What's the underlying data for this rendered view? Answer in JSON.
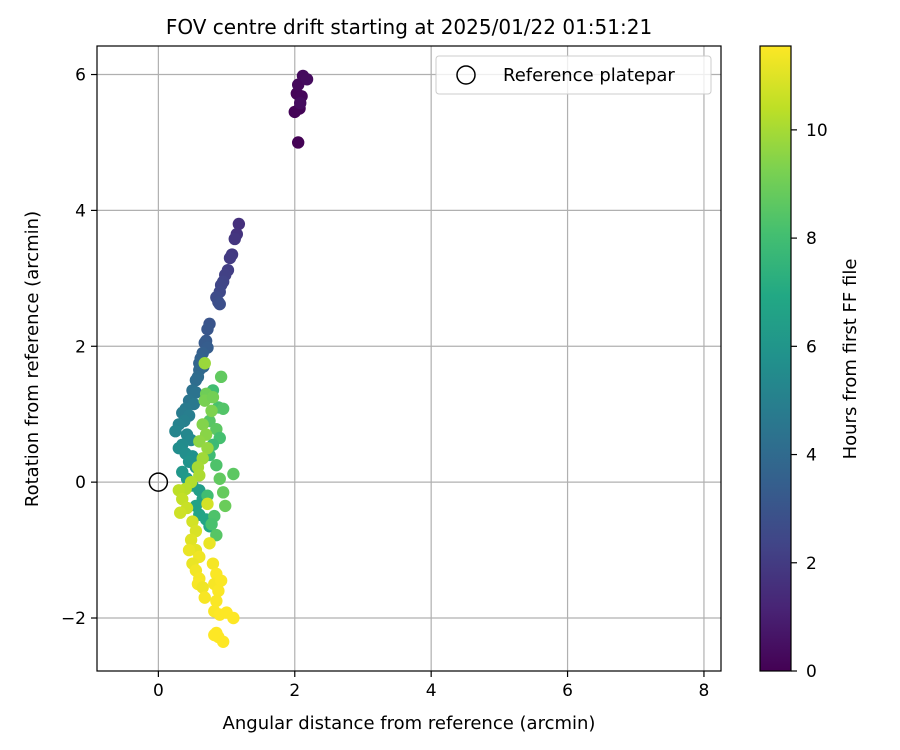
{
  "chart_data": {
    "type": "scatter",
    "title": "FOV centre drift starting at 2025/01/22 01:51:21",
    "xlabel": "Angular distance from reference (arcmin)",
    "ylabel": "Rotation from reference (arcmin)",
    "xlim": [
      -0.9,
      8.25
    ],
    "ylim": [
      -2.78,
      6.42
    ],
    "xticks": [
      0,
      2,
      4,
      6,
      8
    ],
    "xtick_labels": [
      "0",
      "2",
      "4",
      "6",
      "8"
    ],
    "yticks": [
      -2,
      0,
      2,
      4,
      6
    ],
    "ytick_labels": [
      "−2",
      "0",
      "2",
      "4",
      "6"
    ],
    "grid": true,
    "legend": {
      "position": "top-right",
      "entries": [
        "Reference platepar"
      ]
    },
    "reference_point": {
      "x": 0,
      "y": 0,
      "label": "Reference platepar"
    },
    "colorbar": {
      "label": "Hours from first FF file",
      "colormap": "viridis",
      "range": [
        0,
        11.55
      ],
      "ticks": [
        0,
        2,
        4,
        6,
        8,
        10
      ],
      "tick_labels": [
        "0",
        "2",
        "4",
        "6",
        "8",
        "10"
      ]
    },
    "series": [
      {
        "color_value": "hours",
        "points": [
          [
            2.05,
            5.0,
            0.05
          ],
          [
            2.0,
            5.45,
            0.1
          ],
          [
            2.07,
            5.5,
            0.12
          ],
          [
            2.03,
            5.72,
            0.15
          ],
          [
            2.1,
            5.68,
            0.2
          ],
          [
            2.05,
            5.85,
            0.25
          ],
          [
            2.12,
            5.98,
            0.3
          ],
          [
            2.18,
            5.93,
            0.35
          ],
          [
            2.08,
            5.58,
            0.4
          ],
          [
            1.18,
            3.8,
            1.6
          ],
          [
            1.15,
            3.65,
            1.7
          ],
          [
            1.12,
            3.58,
            1.8
          ],
          [
            1.08,
            3.35,
            1.9
          ],
          [
            1.05,
            3.3,
            2.0
          ],
          [
            1.02,
            3.12,
            2.1
          ],
          [
            0.98,
            3.05,
            2.2
          ],
          [
            0.95,
            2.95,
            2.3
          ],
          [
            0.92,
            2.9,
            2.4
          ],
          [
            0.9,
            2.8,
            2.5
          ],
          [
            0.85,
            2.72,
            2.6
          ],
          [
            0.88,
            2.65,
            2.7
          ],
          [
            0.9,
            2.62,
            2.8
          ],
          [
            0.75,
            2.33,
            3.0
          ],
          [
            0.72,
            2.25,
            3.1
          ],
          [
            0.7,
            2.08,
            3.2
          ],
          [
            0.68,
            2.05,
            3.3
          ],
          [
            0.72,
            1.98,
            3.4
          ],
          [
            0.65,
            1.9,
            3.5
          ],
          [
            0.62,
            1.82,
            3.6
          ],
          [
            0.6,
            1.75,
            3.7
          ],
          [
            0.66,
            1.7,
            3.8
          ],
          [
            0.6,
            1.65,
            3.9
          ],
          [
            0.58,
            1.55,
            4.0
          ],
          [
            0.55,
            1.5,
            4.1
          ],
          [
            0.5,
            1.35,
            4.3
          ],
          [
            0.55,
            1.32,
            4.4
          ],
          [
            0.45,
            1.2,
            4.5
          ],
          [
            0.52,
            1.15,
            4.6
          ],
          [
            0.4,
            1.08,
            4.7
          ],
          [
            0.35,
            1.02,
            4.8
          ],
          [
            0.45,
            0.98,
            4.9
          ],
          [
            0.38,
            0.9,
            5.0
          ],
          [
            0.3,
            0.85,
            5.1
          ],
          [
            0.25,
            0.75,
            5.2
          ],
          [
            0.42,
            0.7,
            5.3
          ],
          [
            0.48,
            0.62,
            5.4
          ],
          [
            0.35,
            0.55,
            5.5
          ],
          [
            0.3,
            0.5,
            5.6
          ],
          [
            0.4,
            0.42,
            5.7
          ],
          [
            0.5,
            0.38,
            5.8
          ],
          [
            0.45,
            0.3,
            5.9
          ],
          [
            0.55,
            0.22,
            6.0
          ],
          [
            0.35,
            0.15,
            6.1
          ],
          [
            0.42,
            0.05,
            6.2
          ],
          [
            0.5,
            -0.05,
            6.3
          ],
          [
            0.6,
            -0.12,
            6.4
          ],
          [
            0.65,
            -0.25,
            6.5
          ],
          [
            0.55,
            -0.35,
            6.6
          ],
          [
            0.6,
            -0.48,
            6.7
          ],
          [
            0.7,
            -0.55,
            6.8
          ],
          [
            0.75,
            -0.65,
            6.9
          ],
          [
            0.8,
            1.35,
            8.0
          ],
          [
            0.88,
            1.1,
            8.2
          ],
          [
            0.95,
            1.08,
            8.4
          ],
          [
            0.75,
            0.9,
            8.5
          ],
          [
            0.85,
            0.78,
            8.6
          ],
          [
            0.9,
            0.65,
            8.1
          ],
          [
            0.8,
            0.55,
            7.8
          ],
          [
            0.75,
            0.4,
            7.9
          ],
          [
            0.85,
            0.25,
            8.3
          ],
          [
            0.9,
            0.05,
            8.7
          ],
          [
            0.95,
            -0.15,
            8.8
          ],
          [
            0.98,
            -0.35,
            8.9
          ],
          [
            0.72,
            -0.2,
            8.0
          ],
          [
            0.82,
            -0.5,
            8.3
          ],
          [
            0.78,
            -0.62,
            8.2
          ],
          [
            0.85,
            -0.78,
            8.5
          ],
          [
            1.1,
            0.12,
            8.6
          ],
          [
            0.92,
            1.55,
            8.7
          ],
          [
            0.7,
            1.3,
            9.0
          ],
          [
            0.68,
            1.2,
            9.2
          ],
          [
            0.78,
            1.05,
            9.3
          ],
          [
            0.65,
            0.85,
            9.4
          ],
          [
            0.7,
            0.7,
            9.5
          ],
          [
            0.6,
            0.6,
            9.6
          ],
          [
            0.68,
            1.75,
            9.8
          ],
          [
            0.8,
            1.25,
            9.1
          ],
          [
            0.72,
            0.5,
            9.7
          ],
          [
            0.65,
            0.35,
            9.9
          ],
          [
            0.58,
            0.22,
            10.0
          ],
          [
            0.6,
            0.1,
            10.1
          ],
          [
            0.48,
            0.0,
            10.2
          ],
          [
            0.4,
            -0.1,
            10.3
          ],
          [
            0.3,
            -0.12,
            10.4
          ],
          [
            0.35,
            -0.25,
            10.5
          ],
          [
            0.42,
            -0.38,
            10.6
          ],
          [
            0.32,
            -0.45,
            10.7
          ],
          [
            0.5,
            -0.58,
            10.8
          ],
          [
            0.55,
            -0.72,
            10.9
          ],
          [
            0.48,
            -0.85,
            11.0
          ],
          [
            0.55,
            -1.0,
            11.1
          ],
          [
            0.45,
            -1.0,
            11.2
          ],
          [
            0.6,
            -1.1,
            11.3
          ],
          [
            0.5,
            -1.2,
            11.2
          ],
          [
            0.55,
            -1.3,
            11.35
          ],
          [
            0.6,
            -1.42,
            11.4
          ],
          [
            0.58,
            -1.5,
            11.45
          ],
          [
            0.65,
            -1.55,
            11.3
          ],
          [
            0.68,
            -1.7,
            11.45
          ],
          [
            0.72,
            -0.32,
            10.8
          ],
          [
            0.75,
            -0.9,
            11.2
          ],
          [
            0.8,
            -1.2,
            11.4
          ],
          [
            0.85,
            -1.35,
            11.5
          ],
          [
            0.82,
            -1.5,
            11.45
          ],
          [
            0.88,
            -1.6,
            11.5
          ],
          [
            0.85,
            -1.75,
            11.5
          ],
          [
            0.82,
            -1.9,
            11.5
          ],
          [
            0.9,
            -1.95,
            11.55
          ],
          [
            1.0,
            -1.92,
            11.55
          ],
          [
            1.1,
            -2.0,
            11.55
          ],
          [
            0.85,
            -2.22,
            11.55
          ],
          [
            0.88,
            -2.28,
            11.55
          ],
          [
            0.82,
            -2.25,
            11.55
          ],
          [
            0.95,
            -2.35,
            11.55
          ],
          [
            0.92,
            -1.45,
            11.5
          ]
        ]
      }
    ]
  }
}
